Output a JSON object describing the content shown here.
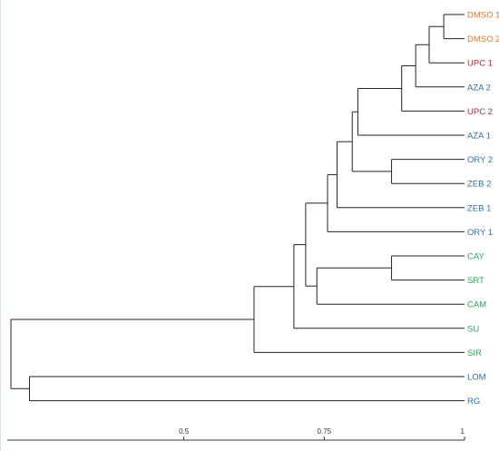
{
  "chart_data": {
    "type": "dendrogram",
    "leaves": [
      {
        "label": "DMSO 1",
        "color": "#e07b2a"
      },
      {
        "label": "DMSO 2",
        "color": "#e07b2a"
      },
      {
        "label": "UPC 1",
        "color": "#c0282e"
      },
      {
        "label": "AZA 2",
        "color": "#2e6fb5"
      },
      {
        "label": "UPC 2",
        "color": "#c0282e"
      },
      {
        "label": "AZA 1",
        "color": "#2e6fb5"
      },
      {
        "label": "ORY 2",
        "color": "#2e6fb5"
      },
      {
        "label": "ZEB 2",
        "color": "#2e6fb5"
      },
      {
        "label": "ZEB 1",
        "color": "#2e6fb5"
      },
      {
        "label": "ORY 1",
        "color": "#2e6fb5"
      },
      {
        "label": "CAY",
        "color": "#2aa65a"
      },
      {
        "label": "SRT",
        "color": "#2aa65a"
      },
      {
        "label": "CAM",
        "color": "#2aa65a"
      },
      {
        "label": "SU",
        "color": "#2aa65a"
      },
      {
        "label": "SIR",
        "color": "#2aa65a"
      },
      {
        "label": "LOM",
        "color": "#2e6fb5"
      },
      {
        "label": "RG",
        "color": "#2e6fb5"
      }
    ],
    "merges": [
      {
        "id": "m1",
        "children": [
          "DMSO 1",
          "DMSO 2"
        ],
        "height": 0.963
      },
      {
        "id": "m2",
        "children": [
          "m1",
          "UPC 1"
        ],
        "height": 0.937
      },
      {
        "id": "m3",
        "children": [
          "m2",
          "AZA 2"
        ],
        "height": 0.913
      },
      {
        "id": "m4",
        "children": [
          "m3",
          "UPC 2"
        ],
        "height": 0.888
      },
      {
        "id": "m5",
        "children": [
          "m4",
          "AZA 1"
        ],
        "height": 0.81
      },
      {
        "id": "m6",
        "children": [
          "ORY 2",
          "ZEB 2"
        ],
        "height": 0.87
      },
      {
        "id": "m7",
        "children": [
          "m5",
          "m6"
        ],
        "height": 0.8
      },
      {
        "id": "m8",
        "children": [
          "m7",
          "ZEB 1"
        ],
        "height": 0.773
      },
      {
        "id": "m9",
        "children": [
          "m8",
          "ORY 1"
        ],
        "height": 0.756
      },
      {
        "id": "m10",
        "children": [
          "CAY",
          "SRT"
        ],
        "height": 0.87
      },
      {
        "id": "m11",
        "children": [
          "m10",
          "CAM"
        ],
        "height": 0.737
      },
      {
        "id": "m12",
        "children": [
          "m9",
          "m11"
        ],
        "height": 0.717
      },
      {
        "id": "m13",
        "children": [
          "m12",
          "SU"
        ],
        "height": 0.696
      },
      {
        "id": "m14",
        "children": [
          "m13",
          "SIR"
        ],
        "height": 0.625
      },
      {
        "id": "m15",
        "children": [
          "LOM",
          "RG"
        ],
        "height": 0.225
      },
      {
        "id": "m16",
        "children": [
          "m14",
          "m15"
        ],
        "height": 0.192
      }
    ],
    "axis": {
      "min": 0.2,
      "max": 1,
      "ticks": [
        0.5,
        0.75,
        1
      ],
      "tick_labels": [
        "0.5",
        "0.75",
        "1"
      ]
    },
    "line_color": "#222222",
    "axis_color": "#333333"
  }
}
